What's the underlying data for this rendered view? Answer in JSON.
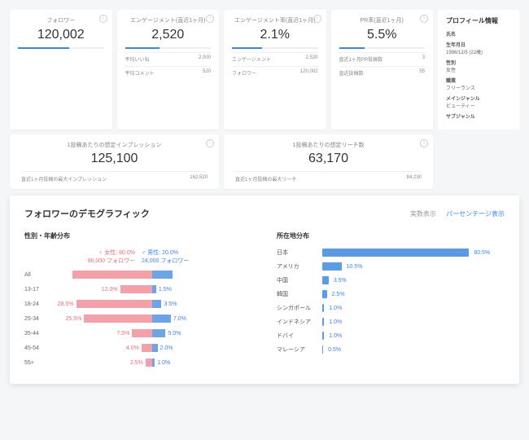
{
  "metrics": [
    {
      "label": "フォロワー",
      "value": "120,002",
      "bar": 60
    },
    {
      "label": "エンゲージメント(直近1ヶ月)",
      "value": "2,520",
      "bar": 40,
      "subs": [
        [
          "平均いいね",
          "2,000"
        ],
        [
          "平均コメント",
          "520"
        ]
      ]
    },
    {
      "label": "エンゲージメント率(直近1ヶ月)",
      "value": "2.1%",
      "bar": 35,
      "subs": [
        [
          "エンゲージメント",
          "2,520"
        ],
        [
          "フォロワー",
          "120,002"
        ]
      ]
    },
    {
      "label": "PR率(直近1ヶ月)",
      "value": "5.5%",
      "bar": 30,
      "subs": [
        [
          "直近1ヶ月PR投稿数",
          "3"
        ],
        [
          "直近投稿数",
          "55"
        ]
      ]
    }
  ],
  "profile": {
    "title": "プロフィール情報",
    "fields": [
      [
        "氏名",
        ""
      ],
      [
        "生年月日",
        "1996/12/5 (22歳)"
      ],
      [
        "性別",
        "女性"
      ],
      [
        "職業",
        "フリーランス"
      ],
      [
        "メインジャンル",
        "ビューティー"
      ],
      [
        "サブジャンル",
        ""
      ]
    ]
  },
  "stats": [
    {
      "label": "1投稿あたりの想定インプレッション",
      "value": "125,100",
      "sub": [
        "直近1ヶ月投稿の最大インプレッション",
        "162,520"
      ]
    },
    {
      "label": "1投稿あたりの想定リーチ数",
      "value": "63,170",
      "sub": [
        "直近1ヶ月投稿の最大リーチ",
        "84,230"
      ]
    }
  ],
  "demo": {
    "title": "フォロワーのデモグラフィック",
    "toggle_raw": "実数表示",
    "toggle_pct": "パーセンテージ表示"
  },
  "gender": {
    "title": "性別・年齢分布",
    "f_label": "女性: 80.0%",
    "f_sub": "96,000 フォロワー",
    "m_label": "男性: 20.0%",
    "m_sub": "24,000 フォロワー"
  },
  "ages": [
    {
      "label": "All",
      "f": 80,
      "m": 20,
      "showPct": false
    },
    {
      "label": "13-17",
      "f": 12.0,
      "m": 1.5
    },
    {
      "label": "18-24",
      "f": 28.5,
      "m": 3.5
    },
    {
      "label": "25-34",
      "f": 25.5,
      "m": 7.0
    },
    {
      "label": "35-44",
      "f": 7.5,
      "m": 5.0
    },
    {
      "label": "45-54",
      "f": 4.0,
      "m": 2.0
    },
    {
      "label": "55+",
      "f": 2.5,
      "m": 1.0
    }
  ],
  "loc": {
    "title": "所在地分布"
  },
  "locations": [
    {
      "label": "日本",
      "pct": 80.5
    },
    {
      "label": "アメリカ",
      "pct": 10.5
    },
    {
      "label": "中国",
      "pct": 3.5
    },
    {
      "label": "韓国",
      "pct": 2.5
    },
    {
      "label": "シンガポール",
      "pct": 1.0
    },
    {
      "label": "インドネシア",
      "pct": 1.0
    },
    {
      "label": "ドバイ",
      "pct": 1.0
    },
    {
      "label": "マレーシア",
      "pct": 0.5
    }
  ],
  "colors": {
    "female": "#f4a0a8",
    "male": "#6ba5e8",
    "accent": "#3b82f6"
  }
}
